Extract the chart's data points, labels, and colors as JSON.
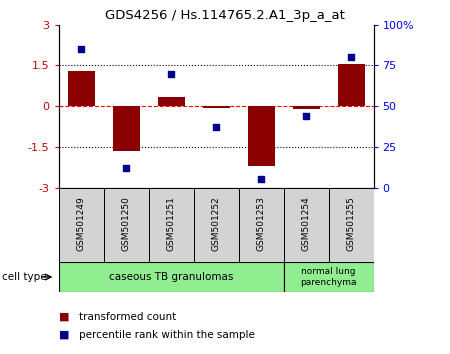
{
  "title": "GDS4256 / Hs.114765.2.A1_3p_a_at",
  "samples": [
    "GSM501249",
    "GSM501250",
    "GSM501251",
    "GSM501252",
    "GSM501253",
    "GSM501254",
    "GSM501255"
  ],
  "bar_values": [
    1.3,
    -1.65,
    0.35,
    -0.05,
    -2.2,
    -0.1,
    1.55
  ],
  "dot_values_pct": [
    85,
    12,
    70,
    37,
    5,
    44,
    80
  ],
  "ylim_left": [
    -3,
    3
  ],
  "ylim_right": [
    0,
    100
  ],
  "yticks_left": [
    -3,
    -1.5,
    0,
    1.5,
    3
  ],
  "ytick_labels_left": [
    "-3",
    "-1.5",
    "0",
    "1.5",
    "3"
  ],
  "yticks_right": [
    0,
    25,
    50,
    75,
    100
  ],
  "ytick_labels_right": [
    "0",
    "25",
    "50",
    "75",
    "100%"
  ],
  "hlines": [
    1.5,
    0,
    -1.5
  ],
  "hline_styles": [
    "dotted",
    "dashed",
    "dotted"
  ],
  "hline_colors": [
    "black",
    "red",
    "black"
  ],
  "bar_color": "#8B0000",
  "dot_color": "#00008B",
  "group1_label": "caseous TB granulomas",
  "group1_count": 5,
  "group2_label": "normal lung\nparenchyma",
  "group2_count": 2,
  "cell_type_color": "#90EE90",
  "sample_box_color": "#d3d3d3",
  "legend_bar_label": "transformed count",
  "legend_dot_label": "percentile rank within the sample",
  "cell_type_label": "cell type"
}
